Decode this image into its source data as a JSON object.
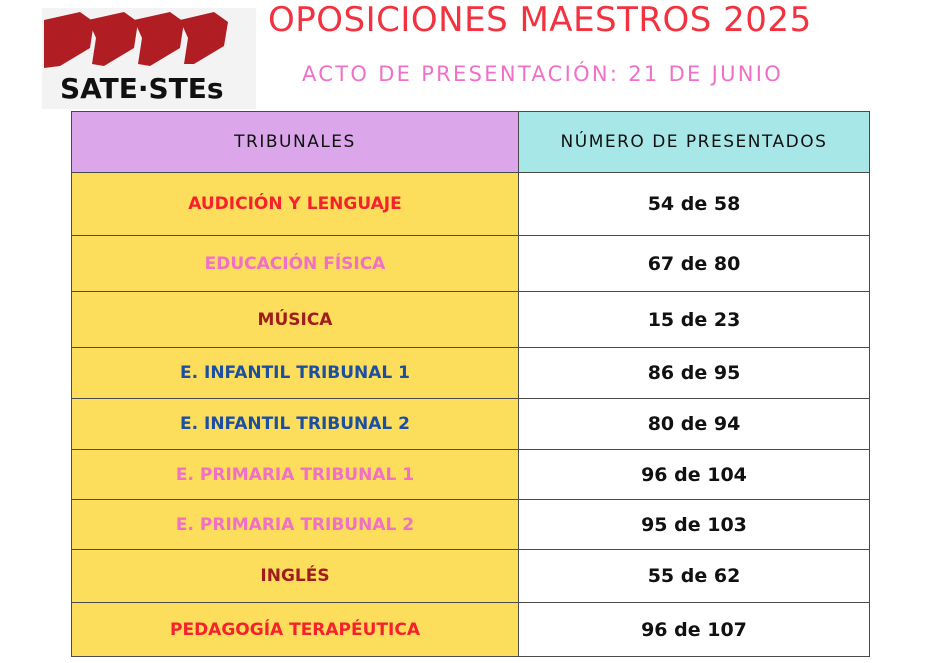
{
  "logo": {
    "text": "SATE·STEs",
    "flag_color": "#b01e24"
  },
  "header": {
    "title": "OPOSICIONES MAESTROS 2025",
    "subtitle": "ACTO DE PRESENTACIÓN: 21 DE JUNIO",
    "title_color": "#f2323f",
    "subtitle_color": "#f06fc7"
  },
  "table": {
    "headers": [
      "TRIBUNALES",
      "NÚMERO DE PRESENTADOS"
    ],
    "rows": [
      {
        "tribunal": "AUDICIÓN Y LENGUAJE",
        "presentados": "54 de 58",
        "color": "#f5222d"
      },
      {
        "tribunal": "EDUCACIÓN FÍSICA",
        "presentados": "67 de 80",
        "color": "#f06fc7"
      },
      {
        "tribunal": "MÚSICA",
        "presentados": "15 de 23",
        "color": "#a01d1d"
      },
      {
        "tribunal": "E. INFANTIL TRIBUNAL 1",
        "presentados": "86 de 95",
        "color": "#1c4fa0"
      },
      {
        "tribunal": "E. INFANTIL TRIBUNAL 2",
        "presentados": "80 de 94",
        "color": "#1c4fa0"
      },
      {
        "tribunal": "E. PRIMARIA TRIBUNAL 1",
        "presentados": "96 de 104",
        "color": "#f06fc7"
      },
      {
        "tribunal": "E. PRIMARIA TRIBUNAL 2",
        "presentados": "95 de 103",
        "color": "#f06fc7"
      },
      {
        "tribunal": "INGLÉS",
        "presentados": "55 de 62",
        "color": "#a01d1d"
      },
      {
        "tribunal": "PEDAGOGÍA TERAPÉUTICA",
        "presentados": "96 de 107",
        "color": "#f5222d"
      }
    ]
  }
}
